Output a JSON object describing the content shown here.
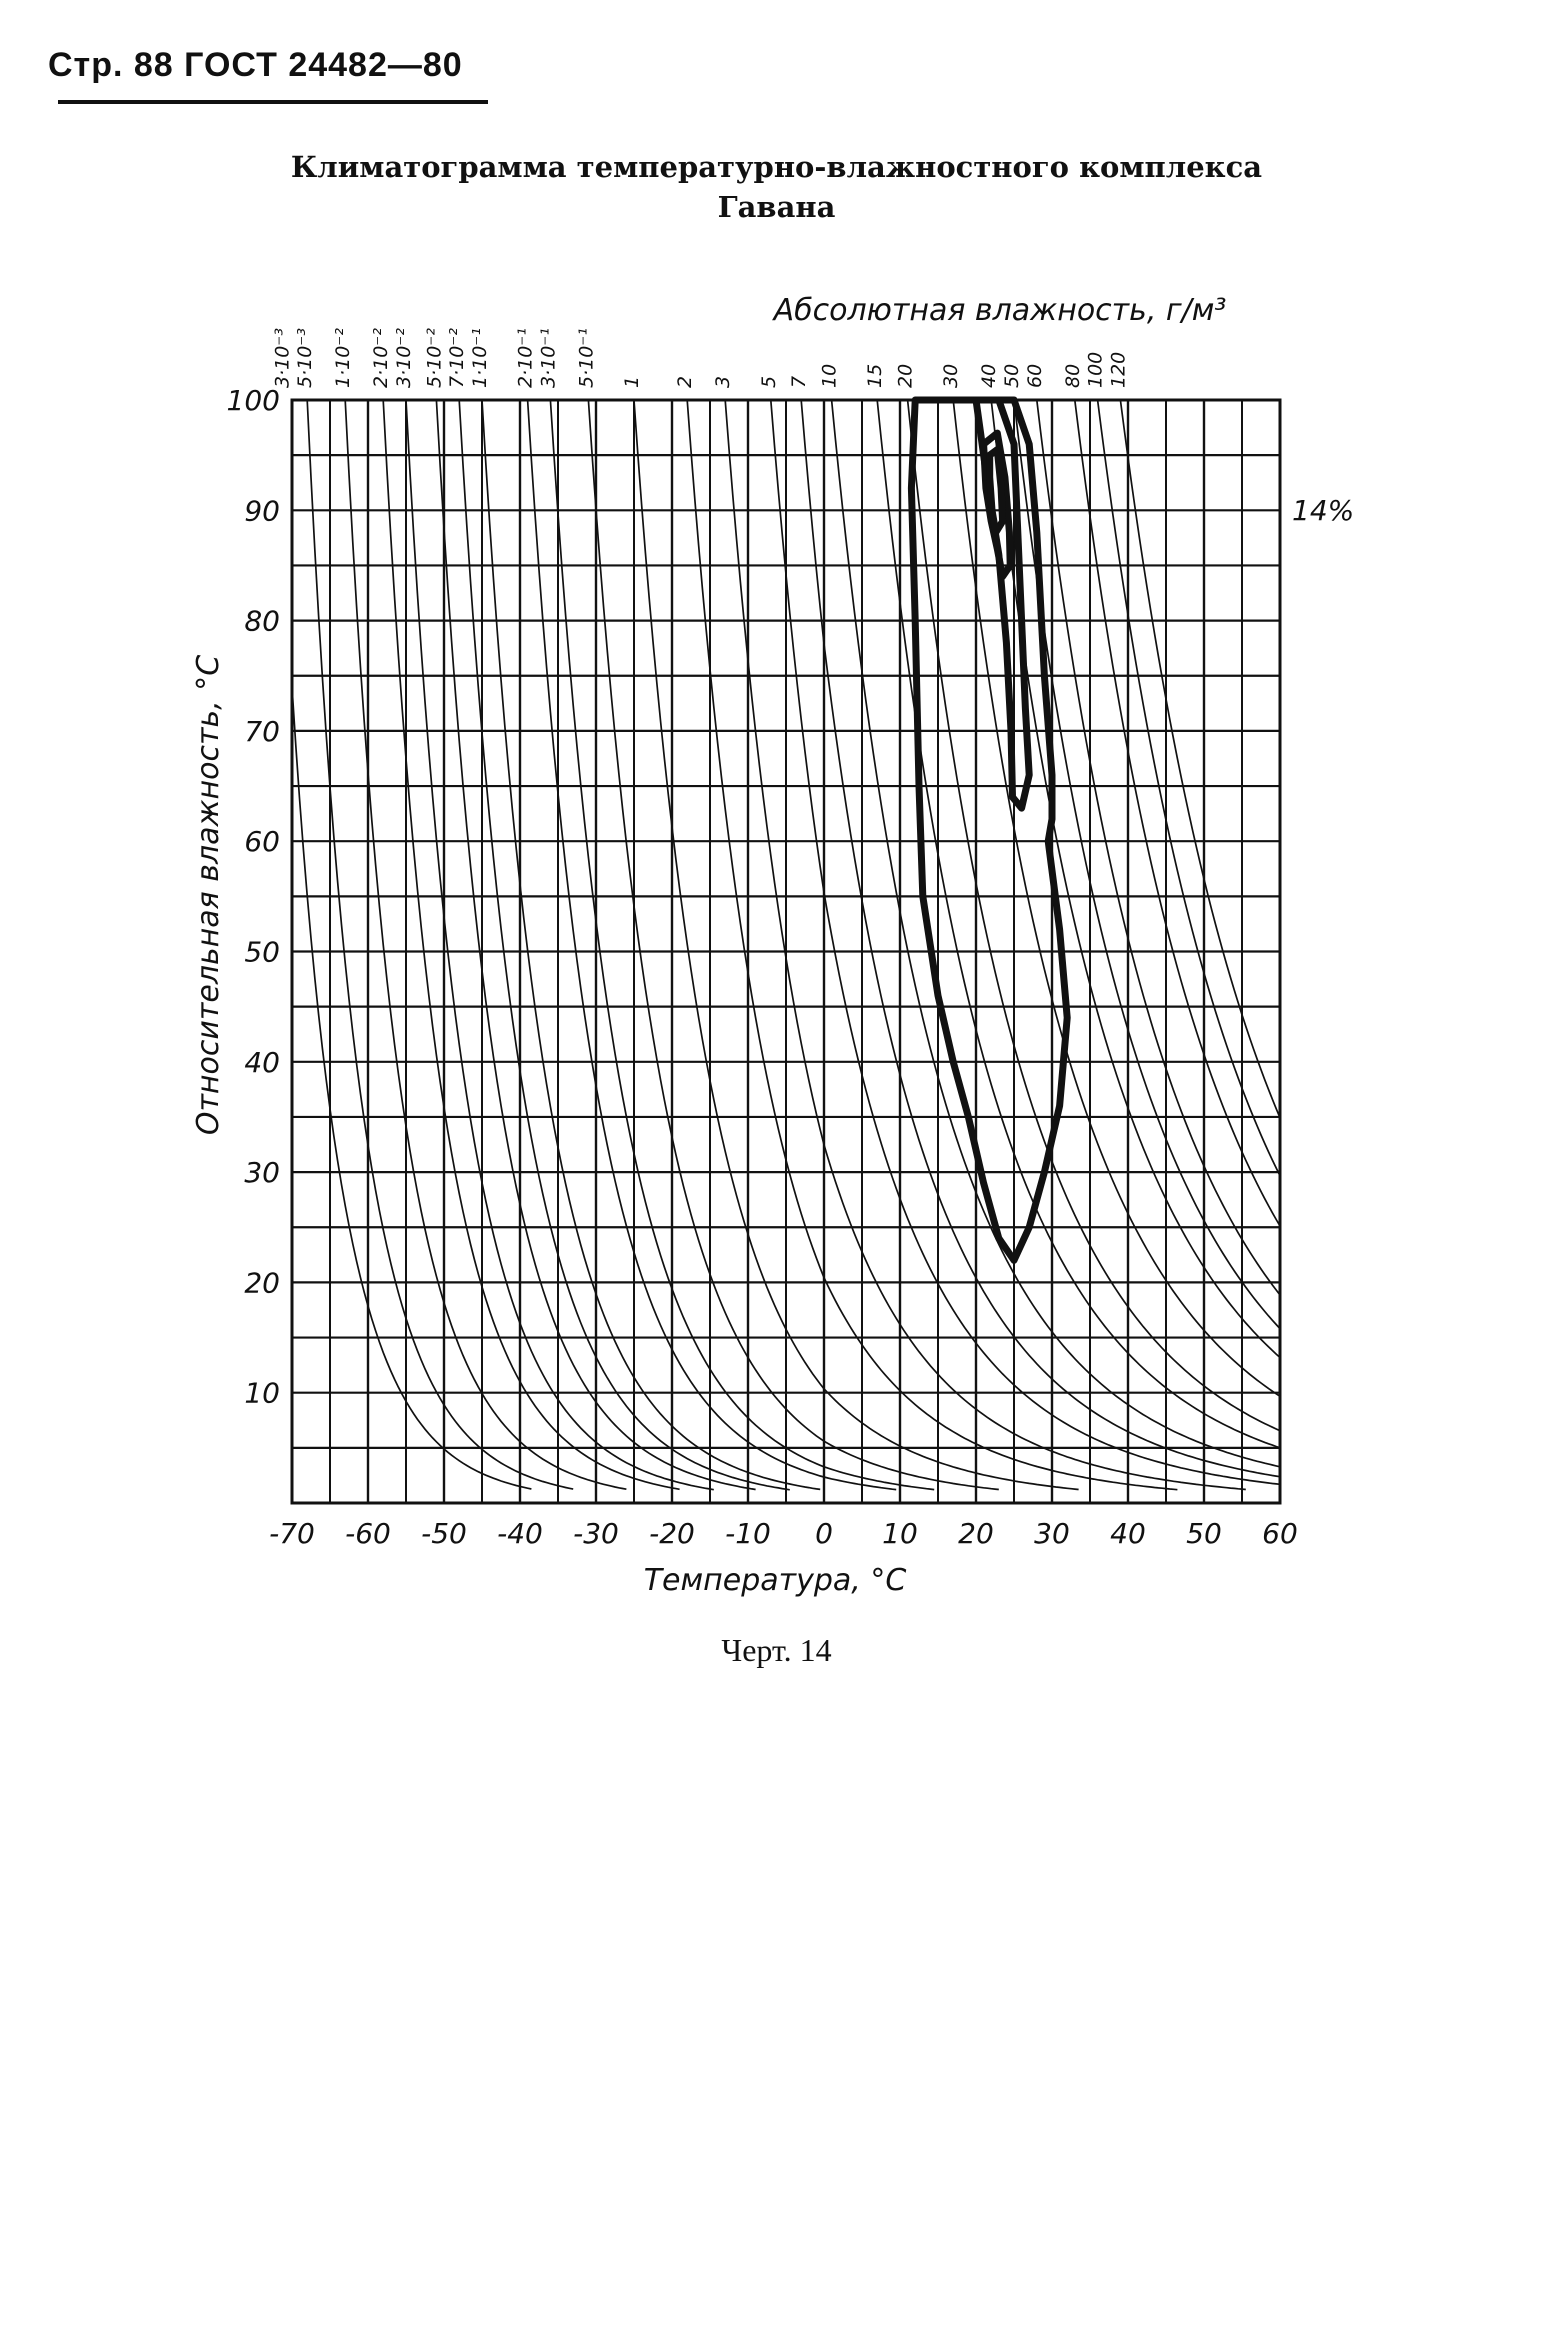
{
  "page": {
    "header": "Стр. 88 ГОСТ 24482—80",
    "title_line1": "Климатограмма температурно-влажностного комплекса",
    "title_line2": "Гавана",
    "caption": "Черт. 14"
  },
  "chart_data": {
    "type": "line",
    "title": "Климатограмма температурно-влажностного комплекса Гавана",
    "xlabel": "Температура, °С",
    "ylabel": "Относительная влажность, °С",
    "top_label": "Абсолютная влажность, г/м³",
    "side_annotation": "14%",
    "xlim": [
      -70,
      60
    ],
    "ylim": [
      0,
      100
    ],
    "x_ticks": [
      -70,
      -60,
      -50,
      -40,
      -30,
      -20,
      -10,
      0,
      10,
      20,
      30,
      40,
      50,
      60
    ],
    "x_tick_labels": [
      "-70",
      "-60",
      "-50",
      "-40",
      "-30",
      "-20",
      "-10",
      "0",
      "10",
      "20",
      "30",
      "40",
      "50",
      "60"
    ],
    "y_ticks": [
      10,
      20,
      30,
      40,
      50,
      60,
      70,
      80,
      90,
      100
    ],
    "y_tick_labels": [
      "10",
      "20",
      "30",
      "40",
      "50",
      "60",
      "70",
      "80",
      "90",
      "100"
    ],
    "grid": true,
    "abs_humidity_curves": [
      {
        "label": "3·10⁻³",
        "value": 0.003,
        "t100": -72
      },
      {
        "label": "5·10⁻³",
        "value": 0.005,
        "t100": -68
      },
      {
        "label": "1·10⁻²",
        "value": 0.01,
        "t100": -63
      },
      {
        "label": "2·10⁻²",
        "value": 0.02,
        "t100": -58
      },
      {
        "label": "3·10⁻²",
        "value": 0.03,
        "t100": -55
      },
      {
        "label": "5·10⁻²",
        "value": 0.05,
        "t100": -51
      },
      {
        "label": "7·10⁻²",
        "value": 0.07,
        "t100": -48
      },
      {
        "label": "1·10⁻¹",
        "value": 0.1,
        "t100": -45
      },
      {
        "label": "2·10⁻¹",
        "value": 0.2,
        "t100": -39
      },
      {
        "label": "3·10⁻¹",
        "value": 0.3,
        "t100": -36
      },
      {
        "label": "5·10⁻¹",
        "value": 0.5,
        "t100": -31
      },
      {
        "label": "1",
        "value": 1,
        "t100": -25
      },
      {
        "label": "2",
        "value": 2,
        "t100": -18
      },
      {
        "label": "3",
        "value": 3,
        "t100": -13
      },
      {
        "label": "5",
        "value": 5,
        "t100": -7
      },
      {
        "label": "7",
        "value": 7,
        "t100": -3
      },
      {
        "label": "10",
        "value": 10,
        "t100": 1
      },
      {
        "label": "15",
        "value": 15,
        "t100": 7
      },
      {
        "label": "20",
        "value": 20,
        "t100": 11
      },
      {
        "label": "30",
        "value": 30,
        "t100": 17
      },
      {
        "label": "40",
        "value": 40,
        "t100": 22
      },
      {
        "label": "50",
        "value": 50,
        "t100": 25
      },
      {
        "label": "60",
        "value": 60,
        "t100": 28
      },
      {
        "label": "80",
        "value": 80,
        "t100": 33
      },
      {
        "label": "100",
        "value": 100,
        "t100": 36
      },
      {
        "label": "120",
        "value": 120,
        "t100": 39
      }
    ],
    "contours": [
      {
        "points": [
          [
            12,
            100
          ],
          [
            20,
            100
          ],
          [
            25,
            100
          ],
          [
            27,
            96
          ],
          [
            28,
            88
          ],
          [
            29,
            75
          ],
          [
            30,
            66
          ],
          [
            30,
            62
          ],
          [
            29.5,
            60
          ],
          [
            31,
            52
          ],
          [
            32,
            44
          ],
          [
            31,
            36
          ],
          [
            29,
            30
          ],
          [
            27,
            25
          ],
          [
            25,
            22
          ],
          [
            23,
            24
          ],
          [
            21,
            29
          ],
          [
            19,
            35
          ],
          [
            17,
            40
          ],
          [
            15,
            46
          ],
          [
            13,
            55
          ],
          [
            12.5,
            65
          ],
          [
            12,
            80
          ],
          [
            11.5,
            92
          ],
          [
            12,
            100
          ]
        ]
      },
      {
        "points": [
          [
            20,
            100
          ],
          [
            23,
            100
          ],
          [
            25,
            96
          ],
          [
            25.5,
            88
          ],
          [
            26,
            80
          ],
          [
            26.5,
            72
          ],
          [
            27,
            66
          ],
          [
            26,
            63
          ],
          [
            24.8,
            64
          ],
          [
            24.6,
            70
          ],
          [
            24,
            78
          ],
          [
            23,
            86
          ],
          [
            21.6,
            92
          ],
          [
            20.6,
            97
          ],
          [
            20,
            100
          ]
        ]
      },
      {
        "points": [
          [
            21,
            96
          ],
          [
            22.8,
            97
          ],
          [
            23.8,
            93
          ],
          [
            24.4,
            88
          ],
          [
            24.5,
            85
          ],
          [
            23.5,
            84
          ],
          [
            22.8,
            86.5
          ],
          [
            22,
            89
          ],
          [
            21.3,
            92
          ],
          [
            21,
            96
          ]
        ]
      },
      {
        "points": [
          [
            21.8,
            95
          ],
          [
            22.8,
            95.5
          ],
          [
            23.3,
            92
          ],
          [
            23.5,
            89
          ],
          [
            22.6,
            88
          ],
          [
            22.1,
            90
          ],
          [
            21.8,
            93
          ],
          [
            21.8,
            95
          ]
        ]
      }
    ]
  }
}
